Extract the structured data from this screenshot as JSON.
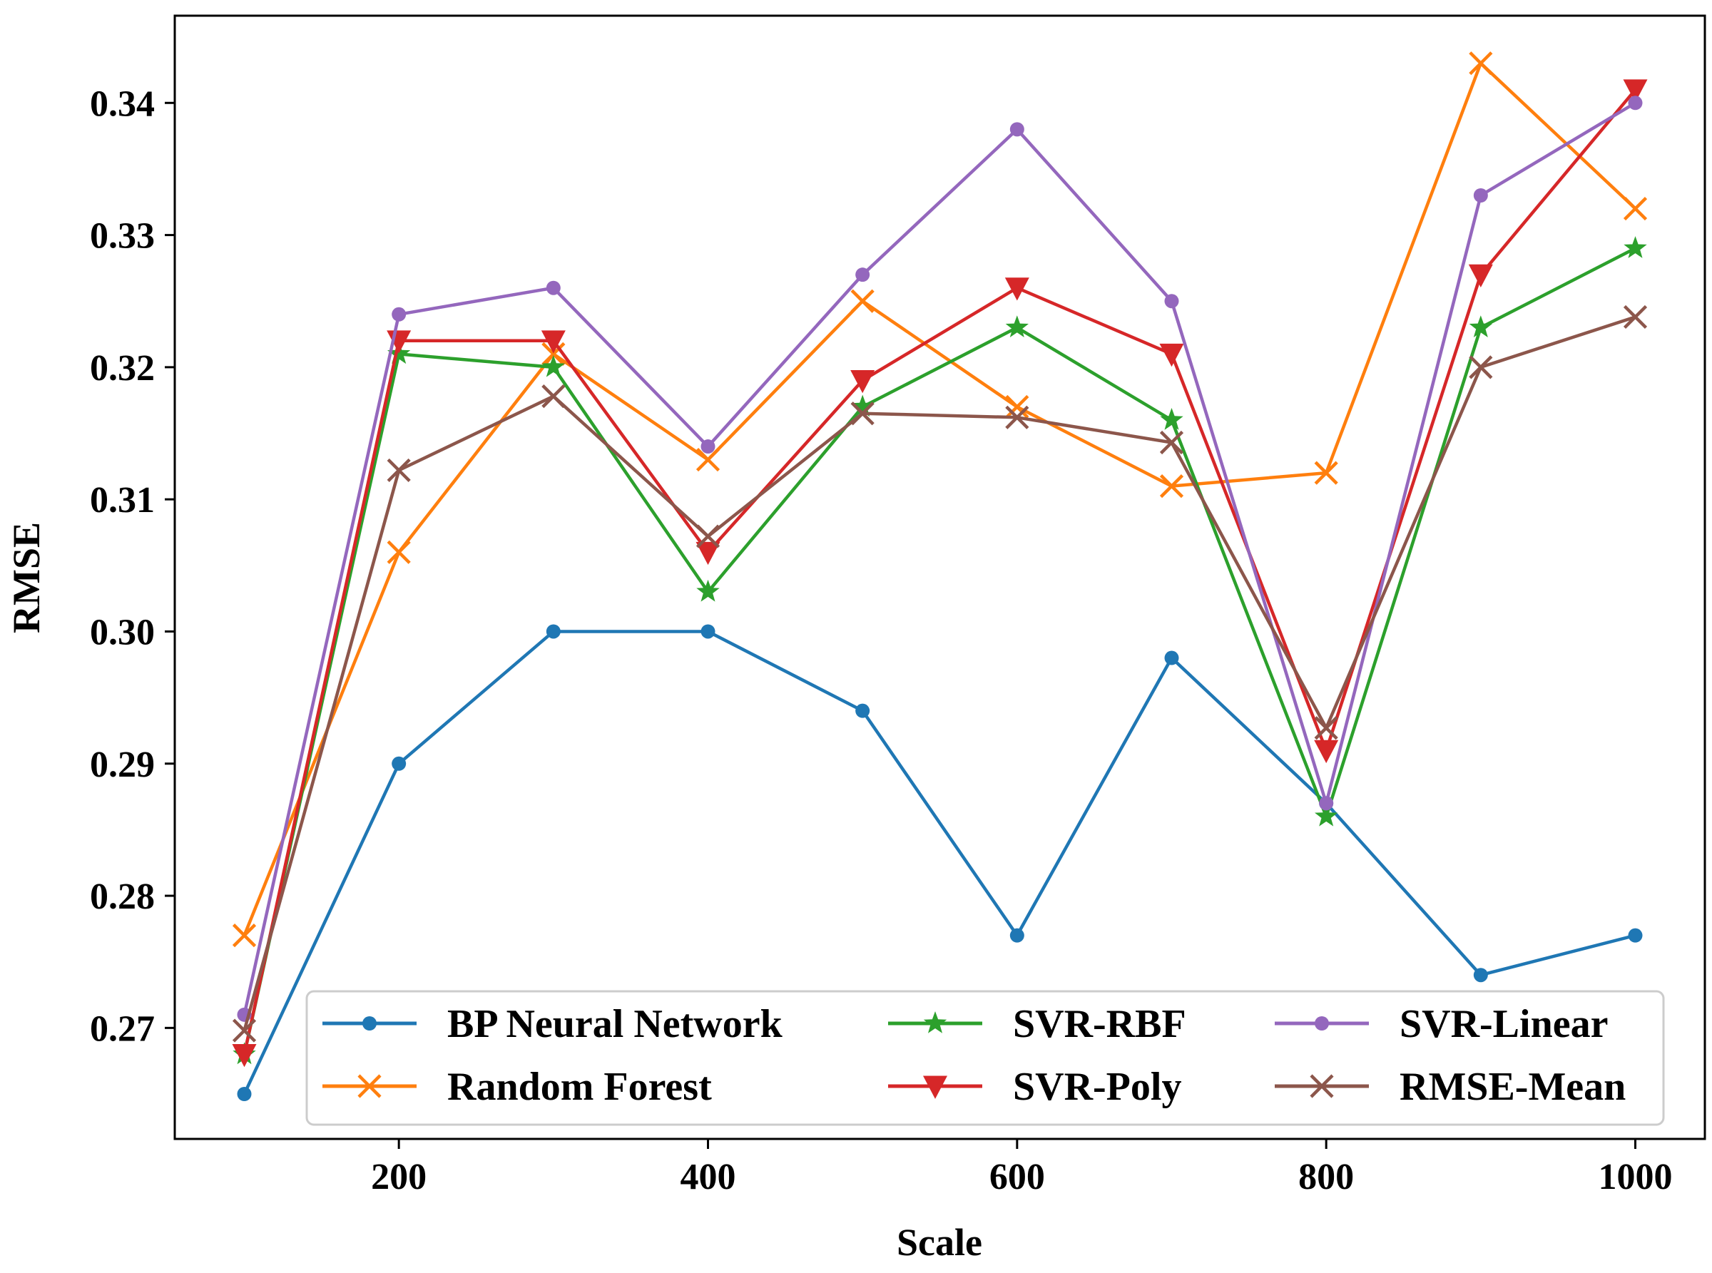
{
  "chart_data": {
    "type": "line",
    "title": "",
    "xlabel": "Scale",
    "ylabel": "RMSE",
    "x": [
      100,
      200,
      300,
      400,
      500,
      600,
      700,
      800,
      900,
      1000
    ],
    "xlim": [
      55,
      1045
    ],
    "ylim": [
      0.2616,
      0.3466
    ],
    "xticks": [
      200,
      400,
      600,
      800,
      1000
    ],
    "xtick_labels": [
      "200",
      "400",
      "600",
      "800",
      "1000"
    ],
    "yticks": [
      0.27,
      0.28,
      0.29,
      0.3,
      0.31,
      0.32,
      0.33,
      0.34
    ],
    "ytick_labels": [
      "0.27",
      "0.28",
      "0.29",
      "0.30",
      "0.31",
      "0.32",
      "0.33",
      "0.34"
    ],
    "grid": false,
    "legend_position": "bottom-center",
    "series": [
      {
        "name": "BP Neural Network",
        "color": "#1f77b4",
        "marker": "circle",
        "values": [
          0.265,
          0.29,
          0.3,
          0.3,
          0.294,
          0.277,
          0.298,
          0.287,
          0.274,
          0.277
        ]
      },
      {
        "name": "Random Forest",
        "color": "#ff7f0e",
        "marker": "x",
        "values": [
          0.277,
          0.306,
          0.321,
          0.313,
          0.325,
          0.317,
          0.311,
          0.312,
          0.343,
          0.332
        ]
      },
      {
        "name": "SVR-RBF",
        "color": "#2ca02c",
        "marker": "star",
        "values": [
          0.268,
          0.321,
          0.32,
          0.303,
          0.317,
          0.323,
          0.316,
          0.286,
          0.323,
          0.329
        ]
      },
      {
        "name": "SVR-Poly",
        "color": "#d62728",
        "marker": "triangle-down",
        "values": [
          0.268,
          0.322,
          0.322,
          0.306,
          0.319,
          0.326,
          0.321,
          0.291,
          0.327,
          0.341
        ]
      },
      {
        "name": "SVR-Linear",
        "color": "#9467bd",
        "marker": "circle",
        "values": [
          0.271,
          0.324,
          0.326,
          0.314,
          0.327,
          0.338,
          0.325,
          0.287,
          0.333,
          0.34
        ]
      },
      {
        "name": "RMSE-Mean",
        "color": "#8c564b",
        "marker": "x",
        "values": [
          0.2698,
          0.3122,
          0.3178,
          0.3072,
          0.3165,
          0.3162,
          0.3143,
          0.2927,
          0.32,
          0.3238
        ]
      }
    ]
  }
}
